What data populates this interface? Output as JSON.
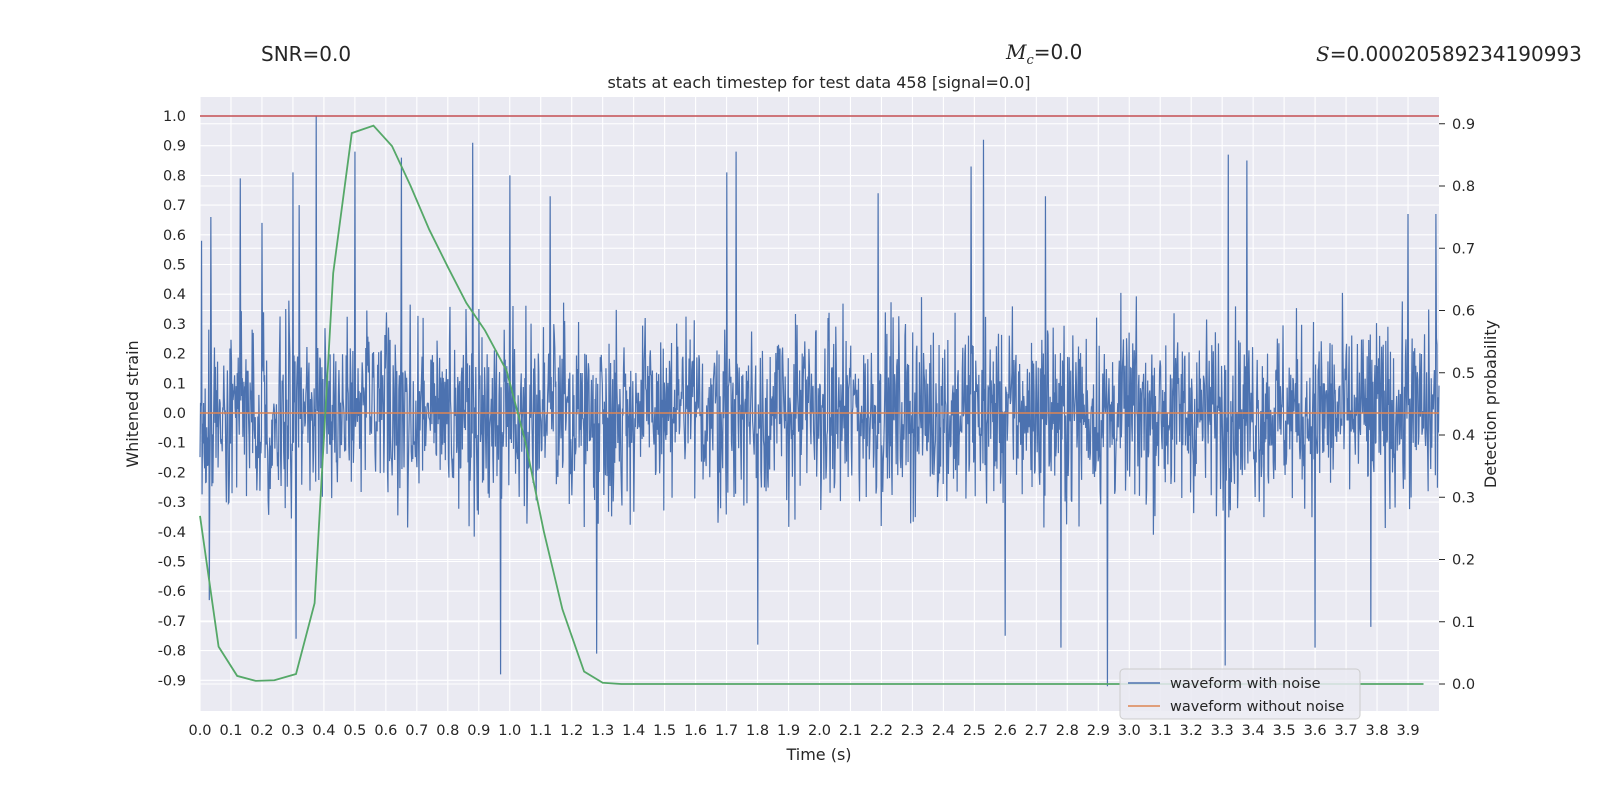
{
  "header": {
    "snr_text": "SNR=0.0",
    "mc_value": "=0.0",
    "s_value": "=0.00020589234190993"
  },
  "chart_data": {
    "type": "line",
    "title": "stats at each timestep for test data 458 [signal=0.0]",
    "xlabel": "Time (s)",
    "ylabel_left": "Whitened strain",
    "ylabel_right": "Detection probability",
    "xlim": [
      0.0,
      4.0
    ],
    "ylim_left": [
      -1.0,
      1.1
    ],
    "ylim_right": [
      -0.04,
      0.94
    ],
    "x_ticks": [
      "0.0",
      "0.1",
      "0.2",
      "0.3",
      "0.4",
      "0.5",
      "0.6",
      "0.7",
      "0.8",
      "0.9",
      "1.0",
      "1.1",
      "1.2",
      "1.3",
      "1.4",
      "1.5",
      "1.6",
      "1.7",
      "1.8",
      "1.9",
      "2.0",
      "2.1",
      "2.2",
      "2.3",
      "2.4",
      "2.5",
      "2.6",
      "2.7",
      "2.8",
      "2.9",
      "3.0",
      "3.1",
      "3.2",
      "3.3",
      "3.4",
      "3.5",
      "3.6",
      "3.7",
      "3.8",
      "3.9"
    ],
    "y_ticks_left": [
      "1.0",
      "0.9",
      "0.8",
      "0.7",
      "0.6",
      "0.5",
      "0.4",
      "0.3",
      "0.2",
      "0.1",
      "0.0",
      "-0.1",
      "-0.2",
      "-0.3",
      "-0.4",
      "-0.5",
      "-0.6",
      "-0.7",
      "-0.8",
      "-0.9"
    ],
    "y_ticks_right": [
      "0.9",
      "0.8",
      "0.7",
      "0.6",
      "0.5",
      "0.4",
      "0.3",
      "0.2",
      "0.1",
      "0.0"
    ],
    "threshold_line": 1.0,
    "series": [
      {
        "name": "waveform with noise",
        "color": "#4c72b0",
        "note": "dense noise trace, amplitude about ±0.45 with spikes to ±0.9",
        "spikes": [
          [
            0.005,
            0.58
          ],
          [
            0.035,
            0.66
          ],
          [
            0.13,
            0.79
          ],
          [
            0.2,
            0.64
          ],
          [
            0.3,
            0.81
          ],
          [
            0.32,
            0.7
          ],
          [
            0.375,
            1.0
          ],
          [
            0.5,
            0.88
          ],
          [
            0.65,
            0.86
          ],
          [
            0.88,
            0.91
          ],
          [
            1.0,
            0.8
          ],
          [
            1.13,
            0.73
          ],
          [
            1.7,
            0.81
          ],
          [
            1.73,
            0.88
          ],
          [
            2.19,
            0.74
          ],
          [
            2.49,
            0.83
          ],
          [
            2.53,
            0.92
          ],
          [
            2.73,
            0.73
          ],
          [
            3.32,
            0.87
          ],
          [
            3.38,
            0.85
          ],
          [
            3.9,
            0.67
          ],
          [
            3.99,
            0.67
          ],
          [
            0.03,
            -0.63
          ],
          [
            0.31,
            -0.76
          ],
          [
            0.97,
            -0.88
          ],
          [
            1.28,
            -0.81
          ],
          [
            1.8,
            -0.78
          ],
          [
            2.6,
            -0.75
          ],
          [
            2.78,
            -0.79
          ],
          [
            2.93,
            -0.92
          ],
          [
            3.31,
            -0.85
          ],
          [
            3.6,
            -0.79
          ],
          [
            3.78,
            -0.72
          ]
        ]
      },
      {
        "name": "waveform without noise",
        "color": "#dd8452",
        "x": [
          0.0,
          4.0
        ],
        "y": [
          0.0,
          0.0
        ]
      },
      {
        "name": "detection probability",
        "color": "#55a868",
        "axis": "right",
        "x": [
          0.0,
          0.06,
          0.12,
          0.18,
          0.24,
          0.31,
          0.37,
          0.43,
          0.49,
          0.56,
          0.62,
          0.68,
          0.74,
          0.8,
          0.86,
          0.92,
          0.99,
          1.05,
          1.11,
          1.17,
          1.24,
          1.3,
          1.36,
          1.42,
          2.0,
          3.0,
          3.95
        ],
        "y": [
          0.27,
          0.06,
          0.013,
          0.005,
          0.006,
          0.016,
          0.13,
          0.66,
          0.885,
          0.897,
          0.864,
          0.8,
          0.73,
          0.67,
          0.612,
          0.568,
          0.503,
          0.39,
          0.245,
          0.12,
          0.02,
          0.002,
          0.0,
          0.0,
          0.0,
          0.0,
          0.0
        ]
      }
    ],
    "legend": {
      "placement": "lower-right",
      "entries": [
        {
          "label": "waveform with noise",
          "color": "#4c72b0"
        },
        {
          "label": "waveform without noise",
          "color": "#dd8452"
        }
      ]
    }
  }
}
